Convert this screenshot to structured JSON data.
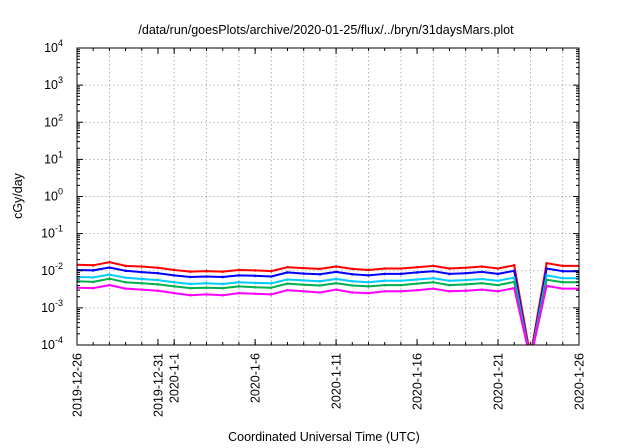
{
  "chart_data": {
    "type": "line",
    "title": "/data/run/goesPlots/archive/2020-01-25/flux/../bryn/31daysMars.plot",
    "xlabel": "Coordinated Universal Time (UTC)",
    "ylabel": "cGy/day",
    "yscale": "log",
    "ylim": [
      0.0001,
      10000
    ],
    "xlim": [
      "2019-12-26",
      "2020-01-26"
    ],
    "grid": true,
    "y_ticks": [
      {
        "value": 0.0001,
        "base": "10",
        "exp": "-4"
      },
      {
        "value": 0.001,
        "base": "10",
        "exp": "-3"
      },
      {
        "value": 0.01,
        "base": "10",
        "exp": "-2"
      },
      {
        "value": 0.1,
        "base": "10",
        "exp": "-1"
      },
      {
        "value": 1,
        "base": "10",
        "exp": "0"
      },
      {
        "value": 10,
        "base": "10",
        "exp": "1"
      },
      {
        "value": 100,
        "base": "10",
        "exp": "2"
      },
      {
        "value": 1000,
        "base": "10",
        "exp": "3"
      },
      {
        "value": 10000,
        "base": "10",
        "exp": "4"
      }
    ],
    "x_ticks": [
      {
        "date": "2019-12-26",
        "label": "2019-12-26"
      },
      {
        "date": "2019-12-31",
        "label": "2019-12-31"
      },
      {
        "date": "2020-01-01",
        "label": "2020-1-1"
      },
      {
        "date": "2020-01-06",
        "label": "2020-1-6"
      },
      {
        "date": "2020-01-11",
        "label": "2020-1-11"
      },
      {
        "date": "2020-01-16",
        "label": "2020-1-16"
      },
      {
        "date": "2020-01-21",
        "label": "2020-1-21"
      },
      {
        "date": "2020-01-26",
        "label": "2020-1-26"
      }
    ],
    "x": [
      "2019-12-26",
      "2019-12-27",
      "2019-12-28",
      "2019-12-29",
      "2019-12-30",
      "2019-12-31",
      "2020-01-01",
      "2020-01-02",
      "2020-01-03",
      "2020-01-04",
      "2020-01-05",
      "2020-01-06",
      "2020-01-07",
      "2020-01-08",
      "2020-01-09",
      "2020-01-10",
      "2020-01-11",
      "2020-01-12",
      "2020-01-13",
      "2020-01-14",
      "2020-01-15",
      "2020-01-16",
      "2020-01-17",
      "2020-01-18",
      "2020-01-19",
      "2020-01-20",
      "2020-01-21",
      "2020-01-22",
      "2020-01-23",
      "2020-01-24",
      "2020-01-25",
      "2020-01-26"
    ],
    "series": [
      {
        "color": "#ff0000",
        "values": [
          0.0145,
          0.014,
          0.017,
          0.0135,
          0.013,
          0.012,
          0.0105,
          0.0095,
          0.0098,
          0.0095,
          0.0105,
          0.0102,
          0.0098,
          0.0125,
          0.0118,
          0.0112,
          0.013,
          0.0112,
          0.0105,
          0.0115,
          0.0115,
          0.0125,
          0.0135,
          0.0115,
          0.012,
          0.013,
          0.0115,
          0.014,
          5e-05,
          0.016,
          0.0135,
          0.0135
        ]
      },
      {
        "color": "#0000ff",
        "values": [
          0.0105,
          0.0102,
          0.0122,
          0.01,
          0.0092,
          0.0086,
          0.0075,
          0.0068,
          0.007,
          0.0068,
          0.0075,
          0.0073,
          0.007,
          0.009,
          0.0084,
          0.008,
          0.0093,
          0.008,
          0.0075,
          0.0082,
          0.0082,
          0.009,
          0.0097,
          0.0082,
          0.0086,
          0.0093,
          0.0082,
          0.01,
          4e-05,
          0.0115,
          0.0097,
          0.0097
        ]
      },
      {
        "color": "#00ccff",
        "values": [
          0.0068,
          0.0066,
          0.0079,
          0.0065,
          0.006,
          0.0056,
          0.0049,
          0.0044,
          0.0046,
          0.0044,
          0.0049,
          0.0047,
          0.0046,
          0.0058,
          0.0055,
          0.0052,
          0.006,
          0.0052,
          0.0049,
          0.0054,
          0.0054,
          0.0058,
          0.0063,
          0.0054,
          0.0056,
          0.006,
          0.0054,
          0.0065,
          4e-05,
          0.0075,
          0.0063,
          0.0063
        ]
      },
      {
        "color": "#00b050",
        "values": [
          0.0052,
          0.005,
          0.0061,
          0.0049,
          0.0046,
          0.0043,
          0.0038,
          0.0034,
          0.0035,
          0.0034,
          0.0038,
          0.0036,
          0.0035,
          0.0045,
          0.0042,
          0.004,
          0.0046,
          0.004,
          0.0038,
          0.0041,
          0.0041,
          0.0045,
          0.0049,
          0.0041,
          0.0043,
          0.0046,
          0.0041,
          0.005,
          4e-05,
          0.0057,
          0.0049,
          0.0049
        ]
      },
      {
        "color": "#ff00ff",
        "values": [
          0.0035,
          0.0034,
          0.0041,
          0.0033,
          0.0031,
          0.0029,
          0.0025,
          0.0022,
          0.0023,
          0.0022,
          0.0025,
          0.0024,
          0.0023,
          0.003,
          0.0028,
          0.0026,
          0.0031,
          0.0026,
          0.0025,
          0.0028,
          0.0028,
          0.003,
          0.0033,
          0.0028,
          0.0029,
          0.0031,
          0.0028,
          0.0034,
          4e-05,
          0.0039,
          0.0033,
          0.0033
        ]
      }
    ]
  }
}
